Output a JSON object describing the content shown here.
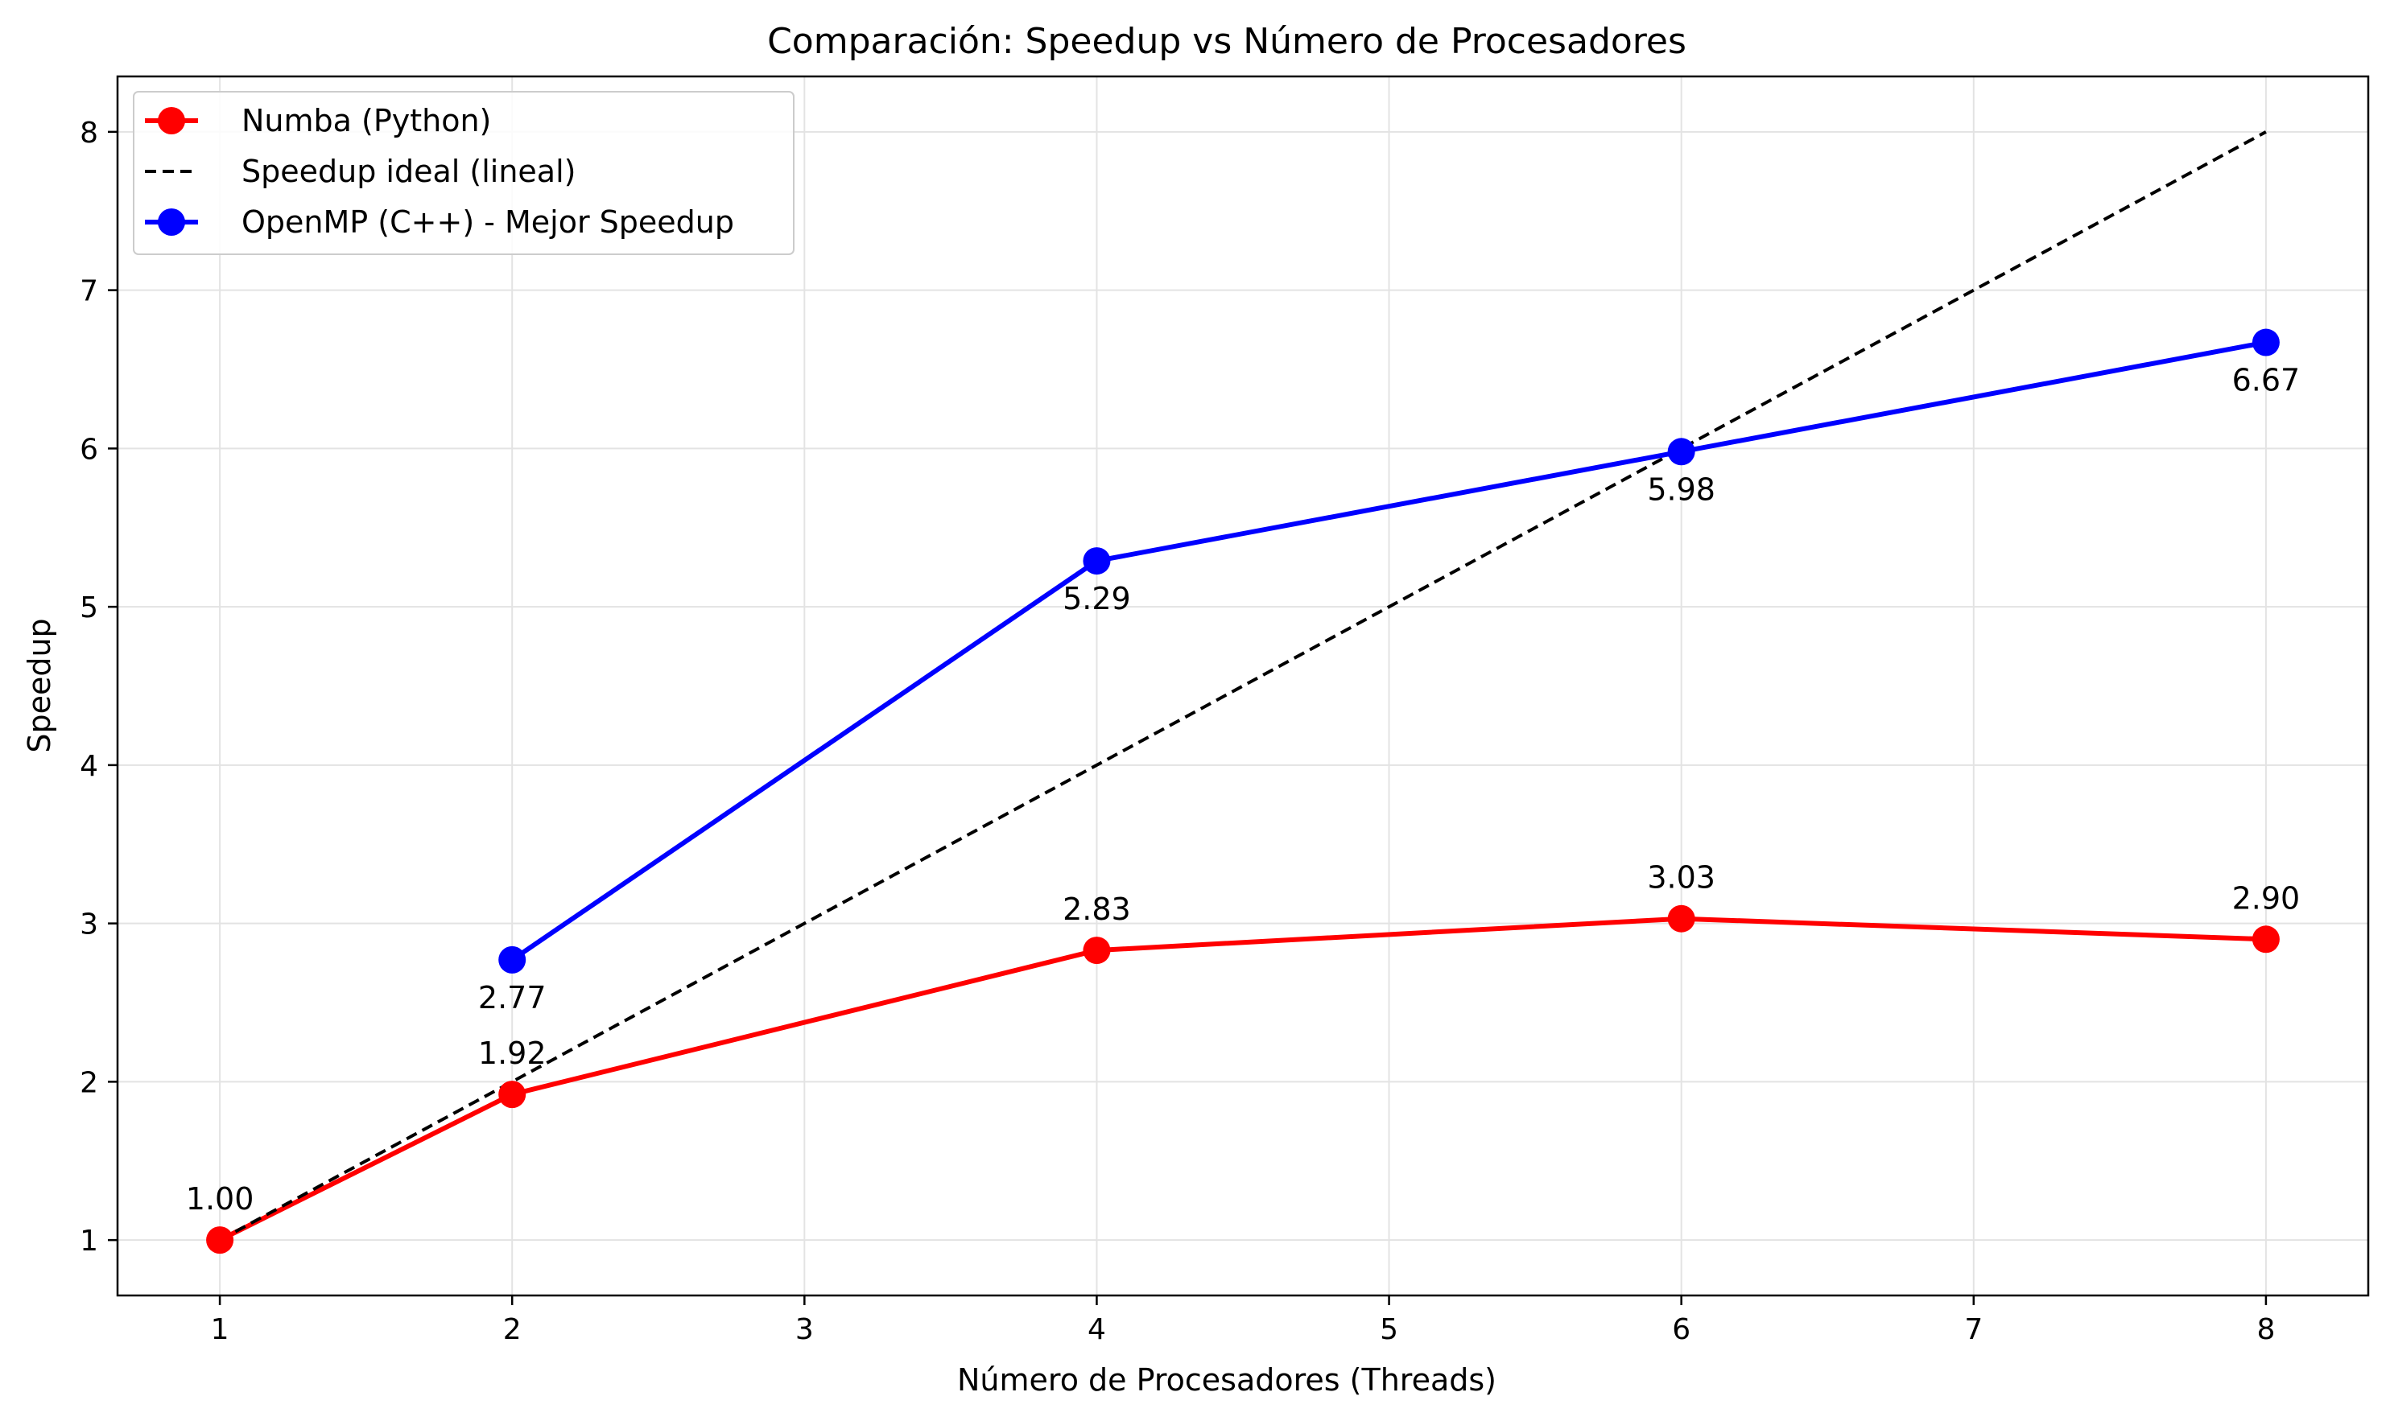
{
  "chart_data": {
    "type": "line",
    "title": "Comparación: Speedup vs Número de Procesadores",
    "xlabel": "Número de Procesadores (Threads)",
    "ylabel": "Speedup",
    "xlim": [
      0.65,
      8.35
    ],
    "ylim": [
      0.65,
      8.35
    ],
    "x_ticks": [
      1,
      2,
      3,
      4,
      5,
      6,
      7,
      8
    ],
    "y_ticks": [
      1,
      2,
      3,
      4,
      5,
      6,
      7,
      8
    ],
    "grid": true,
    "legend_position": "top-left",
    "series": [
      {
        "name": "Numba (Python)",
        "color": "#ff0000",
        "style": "solid",
        "marker": "circle",
        "x": [
          1,
          2,
          4,
          6,
          8
        ],
        "y": [
          1.0,
          1.92,
          2.83,
          3.03,
          2.9
        ],
        "labels": [
          "1.00",
          "1.92",
          "2.83",
          "3.03",
          "2.90"
        ],
        "label_position": "above"
      },
      {
        "name": "Speedup ideal (lineal)",
        "color": "#000000",
        "style": "dashed",
        "marker": "none",
        "x": [
          1,
          8
        ],
        "y": [
          1,
          8
        ]
      },
      {
        "name": "OpenMP (C++) - Mejor Speedup",
        "color": "#0000ff",
        "style": "solid",
        "marker": "circle",
        "x": [
          2,
          4,
          6,
          8
        ],
        "y": [
          2.77,
          5.29,
          5.98,
          6.67
        ],
        "labels": [
          "2.77",
          "5.29",
          "5.98",
          "6.67"
        ],
        "label_position": "below"
      }
    ]
  }
}
